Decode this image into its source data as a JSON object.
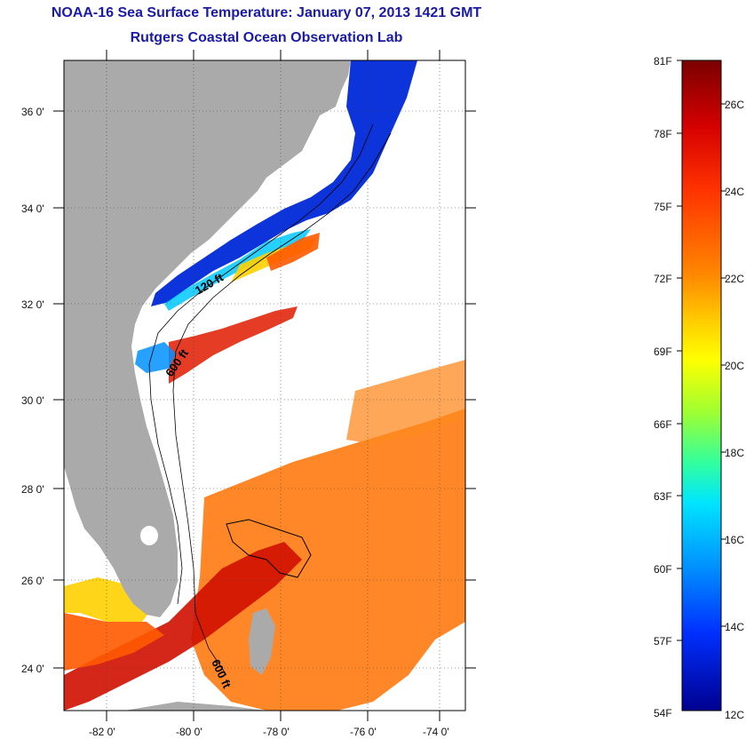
{
  "title": {
    "line1": "NOAA-16 Sea Surface Temperature:  January 07, 2013 1421 GMT",
    "line2": "Rutgers Coastal Ocean Observation Lab"
  },
  "map": {
    "lat_labels": [
      "36 0'",
      "34 0'",
      "32 0'",
      "30 0'",
      "28 0'",
      "26 0'",
      "24 0'"
    ],
    "lon_labels": [
      "-82 0'",
      "-80 0'",
      "-78 0'",
      "-76 0'",
      "-74 0'"
    ],
    "contour_labels": [
      "120 ft",
      "600 ft",
      "600 ft"
    ],
    "colors": {
      "land": "#aaaaaa",
      "no_data": "#ffffff"
    }
  },
  "colorbar": {
    "fahrenheit_labels": [
      "81F",
      "78F",
      "75F",
      "72F",
      "69F",
      "66F",
      "63F",
      "60F",
      "57F",
      "54F"
    ],
    "celsius_labels": [
      "26C",
      "24C",
      "22C",
      "20C",
      "18C",
      "16C",
      "14C",
      "12C"
    ],
    "colors": [
      "#7a0000",
      "#d40000",
      "#ff3300",
      "#ff8800",
      "#ffcc00",
      "#ffff00",
      "#a0ff30",
      "#30ffa0",
      "#00e5ff",
      "#0090ff",
      "#0030ff",
      "#00008f"
    ]
  }
}
